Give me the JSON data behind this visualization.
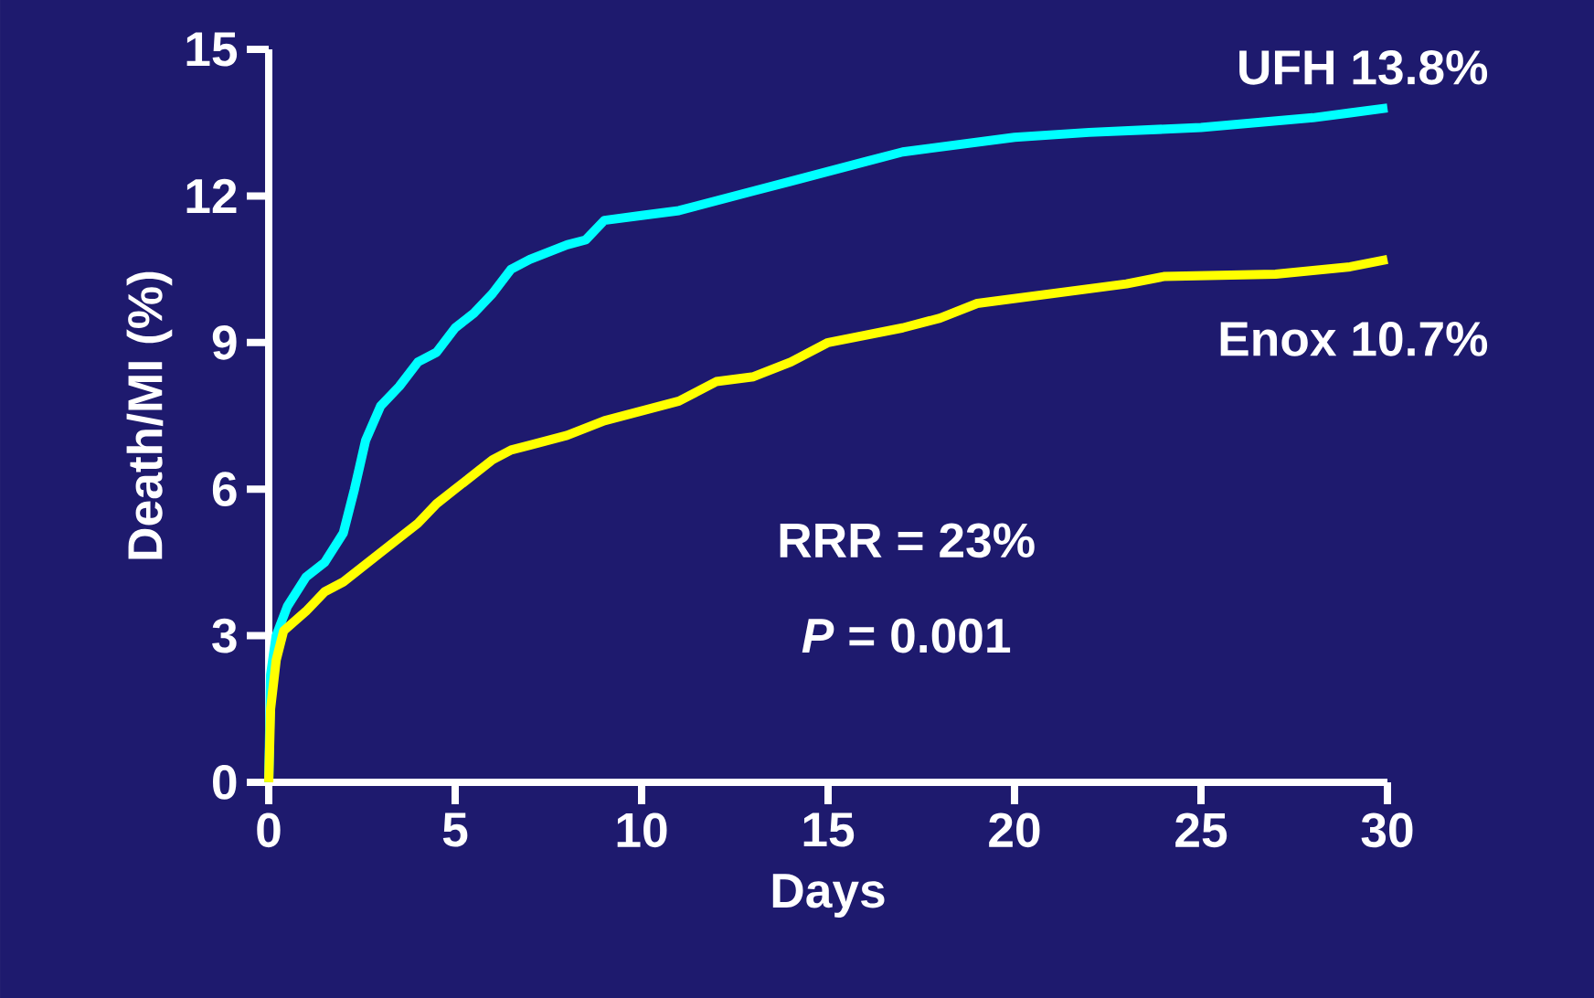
{
  "chart_data": {
    "type": "line",
    "xlabel": "Days",
    "ylabel": "Death/MI (%)",
    "xlim": [
      0,
      30
    ],
    "ylim": [
      0,
      15
    ],
    "xticks": [
      0,
      5,
      10,
      15,
      20,
      25,
      30
    ],
    "yticks": [
      0,
      3,
      6,
      9,
      12,
      15
    ],
    "annotations": [
      "RRR = 23%",
      "*P* = 0.001"
    ],
    "series": [
      {
        "name": "UFH 13.8%",
        "color": "#00ffff",
        "x": [
          0,
          0.05,
          0.2,
          0.5,
          1,
          1.5,
          2,
          2.3,
          2.6,
          3,
          3.5,
          4,
          4.5,
          5,
          5.5,
          6,
          6.5,
          7,
          8,
          8.5,
          9,
          10,
          11,
          12,
          13,
          14,
          15,
          16,
          17,
          20,
          22,
          25,
          28,
          29,
          30
        ],
        "values": [
          0,
          2.2,
          3.0,
          3.6,
          4.2,
          4.5,
          5.1,
          6.0,
          7.0,
          7.7,
          8.1,
          8.6,
          8.8,
          9.3,
          9.6,
          10.0,
          10.5,
          10.7,
          11.0,
          11.1,
          11.5,
          11.6,
          11.7,
          11.9,
          12.1,
          12.3,
          12.5,
          12.7,
          12.9,
          13.2,
          13.3,
          13.4,
          13.6,
          13.7,
          13.8
        ]
      },
      {
        "name": "Enox 10.7%",
        "color": "#ffff00",
        "x": [
          0,
          0.05,
          0.2,
          0.4,
          1,
          1.5,
          2,
          2.5,
          3,
          3.5,
          4,
          4.5,
          5,
          5.5,
          6,
          6.5,
          7,
          8,
          9,
          10,
          11,
          12,
          13,
          14,
          15,
          17,
          18,
          19,
          21,
          23,
          24,
          27,
          29,
          30
        ],
        "values": [
          0,
          1.5,
          2.5,
          3.1,
          3.5,
          3.9,
          4.1,
          4.4,
          4.7,
          5.0,
          5.3,
          5.7,
          6.0,
          6.3,
          6.6,
          6.8,
          6.9,
          7.1,
          7.4,
          7.6,
          7.8,
          8.2,
          8.3,
          8.6,
          9.0,
          9.3,
          9.5,
          9.8,
          10.0,
          10.2,
          10.35,
          10.4,
          10.55,
          10.7
        ]
      }
    ]
  }
}
